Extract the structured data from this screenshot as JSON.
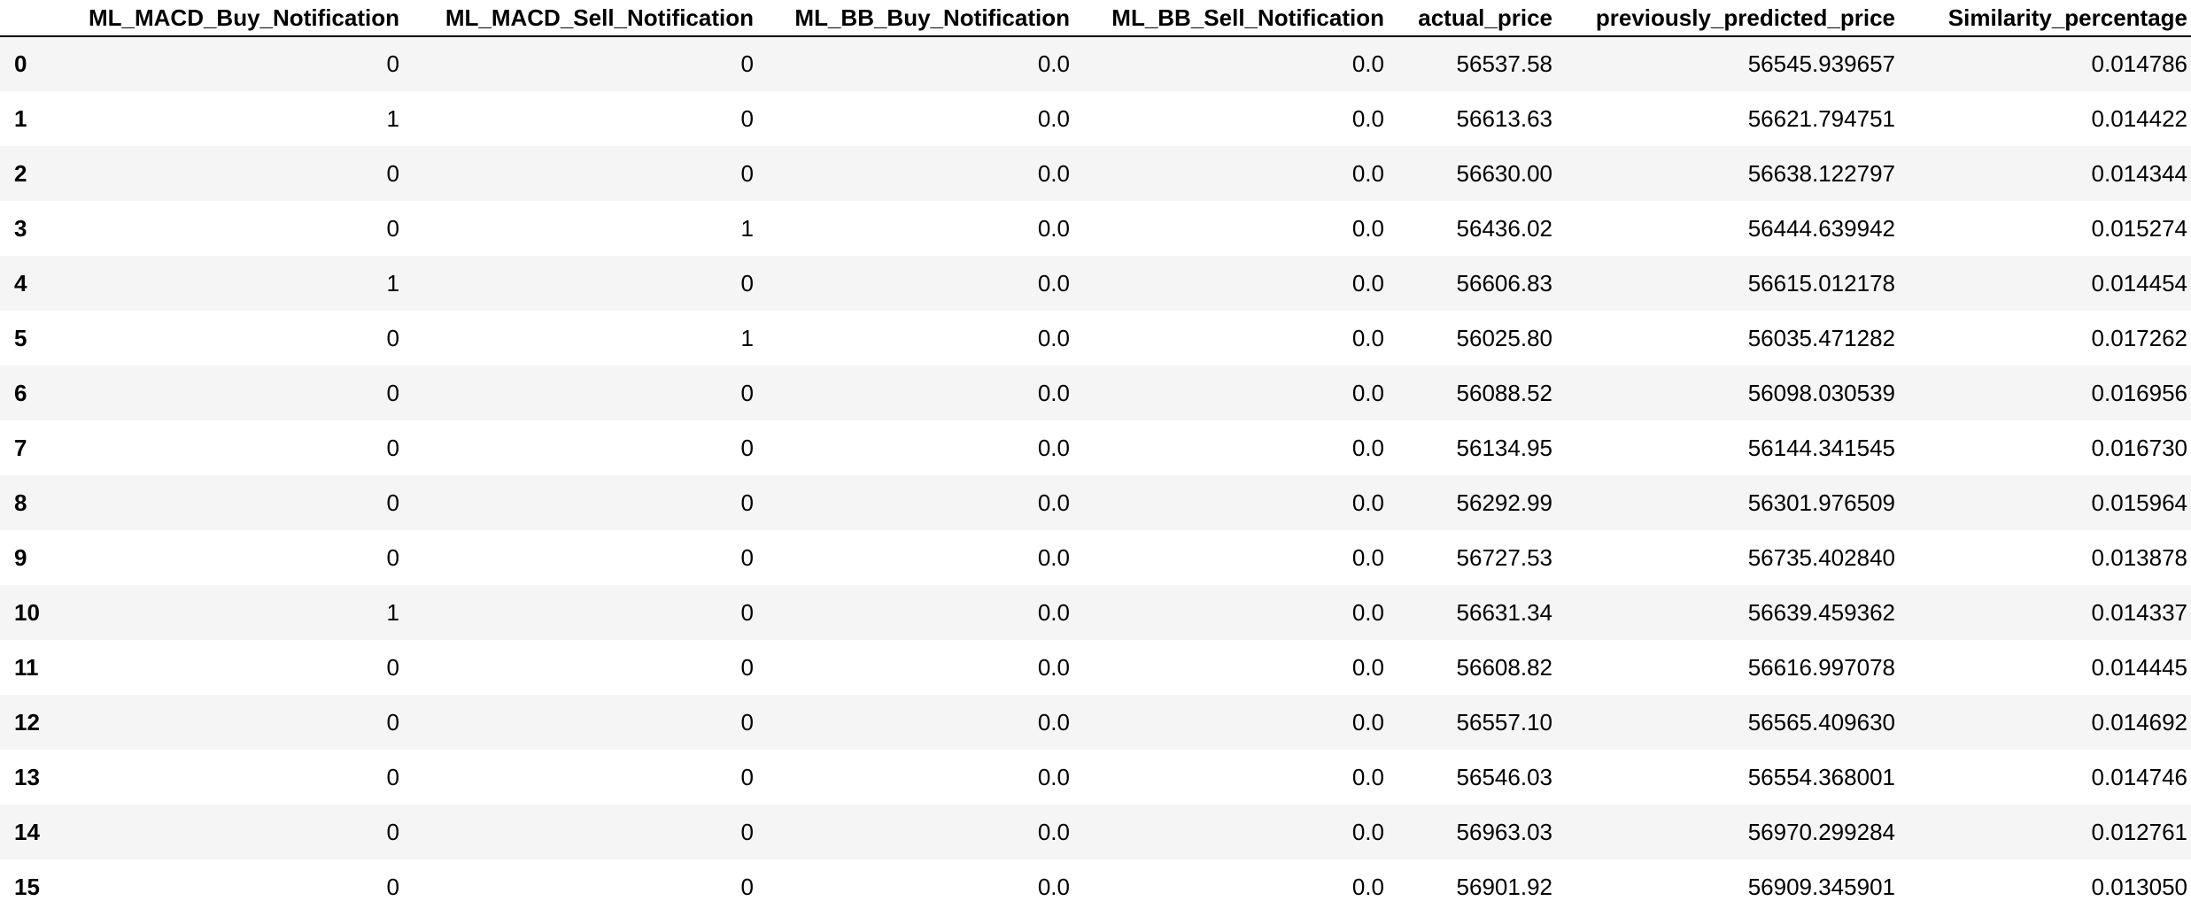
{
  "table": {
    "columns": [
      "",
      "ML_MACD_Buy_Notification",
      "ML_MACD_Sell_Notification",
      "ML_BB_Buy_Notification",
      "ML_BB_Sell_Notification",
      "actual_price",
      "previously_predicted_price",
      "Similarity_percentage"
    ],
    "rows": [
      {
        "index": "0",
        "cells": [
          "0",
          "0",
          "0.0",
          "0.0",
          "56537.58",
          "56545.939657",
          "0.014786"
        ]
      },
      {
        "index": "1",
        "cells": [
          "1",
          "0",
          "0.0",
          "0.0",
          "56613.63",
          "56621.794751",
          "0.014422"
        ]
      },
      {
        "index": "2",
        "cells": [
          "0",
          "0",
          "0.0",
          "0.0",
          "56630.00",
          "56638.122797",
          "0.014344"
        ]
      },
      {
        "index": "3",
        "cells": [
          "0",
          "1",
          "0.0",
          "0.0",
          "56436.02",
          "56444.639942",
          "0.015274"
        ]
      },
      {
        "index": "4",
        "cells": [
          "1",
          "0",
          "0.0",
          "0.0",
          "56606.83",
          "56615.012178",
          "0.014454"
        ]
      },
      {
        "index": "5",
        "cells": [
          "0",
          "1",
          "0.0",
          "0.0",
          "56025.80",
          "56035.471282",
          "0.017262"
        ]
      },
      {
        "index": "6",
        "cells": [
          "0",
          "0",
          "0.0",
          "0.0",
          "56088.52",
          "56098.030539",
          "0.016956"
        ]
      },
      {
        "index": "7",
        "cells": [
          "0",
          "0",
          "0.0",
          "0.0",
          "56134.95",
          "56144.341545",
          "0.016730"
        ]
      },
      {
        "index": "8",
        "cells": [
          "0",
          "0",
          "0.0",
          "0.0",
          "56292.99",
          "56301.976509",
          "0.015964"
        ]
      },
      {
        "index": "9",
        "cells": [
          "0",
          "0",
          "0.0",
          "0.0",
          "56727.53",
          "56735.402840",
          "0.013878"
        ]
      },
      {
        "index": "10",
        "cells": [
          "1",
          "0",
          "0.0",
          "0.0",
          "56631.34",
          "56639.459362",
          "0.014337"
        ]
      },
      {
        "index": "11",
        "cells": [
          "0",
          "0",
          "0.0",
          "0.0",
          "56608.82",
          "56616.997078",
          "0.014445"
        ]
      },
      {
        "index": "12",
        "cells": [
          "0",
          "0",
          "0.0",
          "0.0",
          "56557.10",
          "56565.409630",
          "0.014692"
        ]
      },
      {
        "index": "13",
        "cells": [
          "0",
          "0",
          "0.0",
          "0.0",
          "56546.03",
          "56554.368001",
          "0.014746"
        ]
      },
      {
        "index": "14",
        "cells": [
          "0",
          "0",
          "0.0",
          "0.0",
          "56963.03",
          "56970.299284",
          "0.012761"
        ]
      },
      {
        "index": "15",
        "cells": [
          "0",
          "0",
          "0.0",
          "0.0",
          "56901.92",
          "56909.345901",
          "0.013050"
        ]
      }
    ]
  }
}
